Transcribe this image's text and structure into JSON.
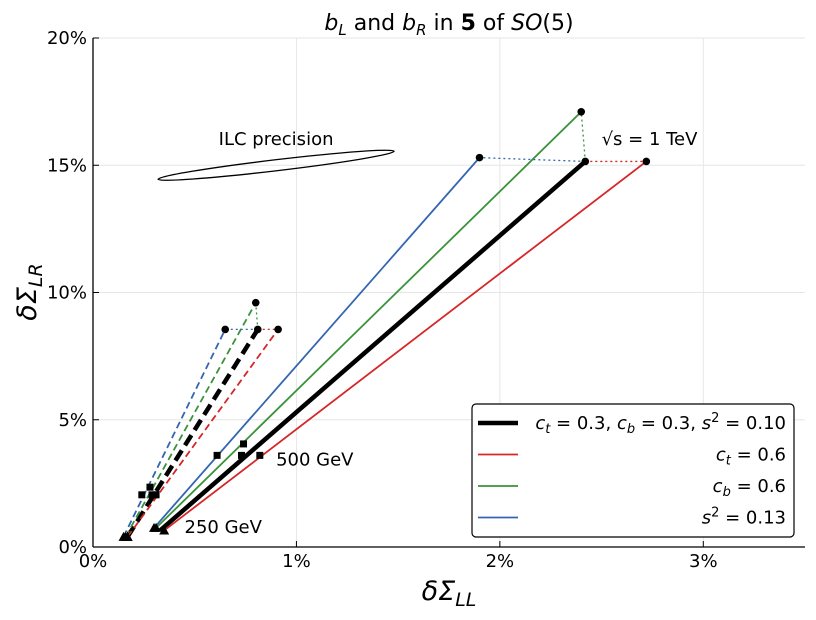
{
  "chart_data": {
    "type": "line",
    "title": "b_L and b_R in 5 of SO(5)",
    "title_parts": {
      "a": "b",
      "a_sub": "L",
      "mid1": " and ",
      "b": "b",
      "b_sub": "R",
      "mid2": " in ",
      "bold": "5",
      "mid3": " of ",
      "group": "SO",
      "tail": "(5)"
    },
    "xlabel": "δΣ",
    "xlabel_sub": "LL",
    "ylabel": "δΣ",
    "ylabel_sub": "LR",
    "xlim": [
      0,
      3.5
    ],
    "ylim": [
      0,
      20
    ],
    "xticks": [
      {
        "v": 0,
        "label": "0%"
      },
      {
        "v": 1,
        "label": "1%"
      },
      {
        "v": 2,
        "label": "2%"
      },
      {
        "v": 3,
        "label": "3%"
      }
    ],
    "yticks": [
      {
        "v": 0,
        "label": "0%"
      },
      {
        "v": 5,
        "label": "5%"
      },
      {
        "v": 10,
        "label": "10%"
      },
      {
        "v": 15,
        "label": "15%"
      },
      {
        "v": 20,
        "label": "20%"
      }
    ],
    "grid": true,
    "series": [
      {
        "id": "base",
        "color": "#000000",
        "width": 4.5,
        "legend": {
          "parts": [
            "c",
            "t",
            " = 0.3, ",
            "c",
            "b",
            " = 0.3, ",
            "s",
            "2",
            " = 0.10"
          ]
        },
        "solid": [
          [
            0.33,
            0.65
          ],
          [
            2.42,
            15.15
          ]
        ],
        "dashed": [
          [
            0.17,
            0.4
          ],
          [
            0.81,
            8.55
          ]
        ],
        "m250": [
          0.17,
          0.4
        ],
        "m500": [
          0.29,
          2.05
        ],
        "m500b": [
          0.73,
          3.6
        ],
        "mtev": [
          2.42,
          15.15
        ],
        "m1tev": [
          0.81,
          8.55
        ]
      },
      {
        "id": "ct",
        "color": "#d62728",
        "width": 1.8,
        "legend": {
          "parts": [
            "c",
            "t",
            " = 0.6"
          ]
        },
        "solid": [
          [
            0.35,
            0.65
          ],
          [
            2.72,
            15.15
          ]
        ],
        "dashed": [
          [
            0.17,
            0.4
          ],
          [
            0.91,
            8.55
          ]
        ],
        "m250": [
          0.35,
          0.65
        ],
        "m500": [
          0.31,
          2.05
        ],
        "m500b": [
          0.82,
          3.6
        ],
        "mtev": [
          2.72,
          15.15
        ],
        "m1tev": [
          0.91,
          8.55
        ]
      },
      {
        "id": "cb",
        "color": "#3a923a",
        "width": 1.8,
        "legend": {
          "parts": [
            "c",
            "b",
            " = 0.6"
          ]
        },
        "solid": [
          [
            0.31,
            0.75
          ],
          [
            2.4,
            17.1
          ]
        ],
        "dashed": [
          [
            0.16,
            0.4
          ],
          [
            0.8,
            9.6
          ]
        ],
        "m250": [
          0.31,
          0.75
        ],
        "m500": [
          0.28,
          2.35
        ],
        "m500b": [
          0.74,
          4.05
        ],
        "mtev": [
          2.4,
          17.1
        ],
        "m1tev": [
          0.8,
          9.6
        ]
      },
      {
        "id": "s2",
        "color": "#3465b0",
        "width": 1.8,
        "legend": {
          "parts": [
            "s",
            "2",
            " = 0.13"
          ]
        },
        "solid": [
          [
            0.3,
            0.75
          ],
          [
            1.9,
            15.3
          ]
        ],
        "dashed": [
          [
            0.15,
            0.4
          ],
          [
            0.65,
            8.55
          ]
        ],
        "m250": [
          0.3,
          0.75
        ],
        "m500": [
          0.24,
          2.05
        ],
        "m500b": [
          0.61,
          3.6
        ],
        "mtev": [
          1.9,
          15.3
        ],
        "m1tev": [
          0.65,
          8.55
        ]
      }
    ],
    "annotations": {
      "ilc": {
        "text": "ILC precision",
        "center": [
          0.9,
          15.0
        ],
        "half_x": 0.58,
        "half_y": 0.55,
        "label_at": [
          0.9,
          15.8
        ]
      },
      "tev": {
        "text_pre": "√s",
        "text_post": " = 1 TeV",
        "at": [
          2.5,
          15.8
        ]
      },
      "gev500": {
        "text": "500 GeV",
        "at": [
          0.9,
          3.2
        ]
      },
      "gev250": {
        "text": "250 GeV",
        "at": [
          0.45,
          0.55
        ]
      }
    }
  }
}
